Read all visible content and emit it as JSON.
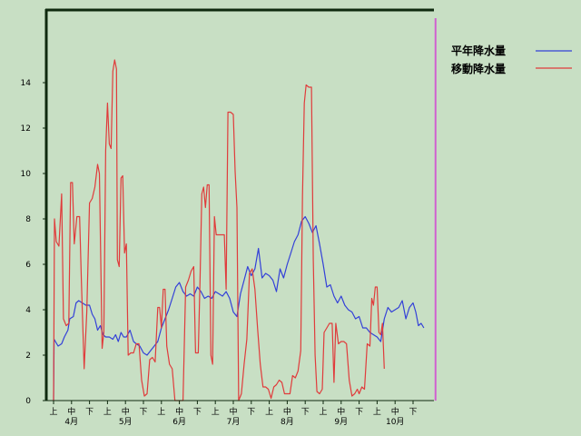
{
  "chart_data": {
    "type": "line",
    "ylim": [
      0,
      16
    ],
    "yticks": [
      0,
      2,
      4,
      6,
      8,
      10,
      12,
      14
    ],
    "xlim": [
      0,
      21.4
    ],
    "period_ticks": [
      "上",
      "中",
      "下",
      "上",
      "中",
      "下",
      "上",
      "中",
      "下",
      "上",
      "中",
      "下",
      "上",
      "中",
      "下",
      "上",
      "中",
      "下",
      "上",
      "中",
      "下"
    ],
    "month_labels": [
      {
        "label": "4月",
        "x": 1
      },
      {
        "label": "5月",
        "x": 4
      },
      {
        "label": "6月",
        "x": 7
      },
      {
        "label": "7月",
        "x": 10
      },
      {
        "label": "8月",
        "x": 13
      },
      {
        "label": "9月",
        "x": 16
      },
      {
        "label": "10月",
        "x": 19
      }
    ],
    "marker_line_x": 21.25,
    "grid": false,
    "legend_position": "top-right",
    "series": [
      {
        "name": "平年降水量",
        "color": "#3340d8",
        "points": [
          [
            0.0,
            0.0
          ],
          [
            0.03,
            2.7
          ],
          [
            0.25,
            2.4
          ],
          [
            0.45,
            2.5
          ],
          [
            0.6,
            2.8
          ],
          [
            0.8,
            3.1
          ],
          [
            0.9,
            3.6
          ],
          [
            1.1,
            3.7
          ],
          [
            1.25,
            4.3
          ],
          [
            1.4,
            4.4
          ],
          [
            1.6,
            4.3
          ],
          [
            1.8,
            4.2
          ],
          [
            2.0,
            4.2
          ],
          [
            2.15,
            3.8
          ],
          [
            2.3,
            3.6
          ],
          [
            2.45,
            3.1
          ],
          [
            2.6,
            3.3
          ],
          [
            2.75,
            2.9
          ],
          [
            2.9,
            2.8
          ],
          [
            3.1,
            2.8
          ],
          [
            3.3,
            2.7
          ],
          [
            3.45,
            2.9
          ],
          [
            3.6,
            2.6
          ],
          [
            3.75,
            3.0
          ],
          [
            3.9,
            2.8
          ],
          [
            4.05,
            2.8
          ],
          [
            4.25,
            3.1
          ],
          [
            4.45,
            2.6
          ],
          [
            4.6,
            2.5
          ],
          [
            4.8,
            2.4
          ],
          [
            5.0,
            2.1
          ],
          [
            5.2,
            2.0
          ],
          [
            5.4,
            2.2
          ],
          [
            5.6,
            2.4
          ],
          [
            5.8,
            2.6
          ],
          [
            6.0,
            3.2
          ],
          [
            6.2,
            3.6
          ],
          [
            6.4,
            4.0
          ],
          [
            6.6,
            4.5
          ],
          [
            6.8,
            5.0
          ],
          [
            7.0,
            5.2
          ],
          [
            7.2,
            4.8
          ],
          [
            7.4,
            4.6
          ],
          [
            7.6,
            4.7
          ],
          [
            7.8,
            4.6
          ],
          [
            8.0,
            5.0
          ],
          [
            8.2,
            4.8
          ],
          [
            8.4,
            4.5
          ],
          [
            8.6,
            4.6
          ],
          [
            8.8,
            4.5
          ],
          [
            9.0,
            4.8
          ],
          [
            9.2,
            4.7
          ],
          [
            9.4,
            4.6
          ],
          [
            9.6,
            4.8
          ],
          [
            9.8,
            4.5
          ],
          [
            10.0,
            3.9
          ],
          [
            10.2,
            3.7
          ],
          [
            10.4,
            4.7
          ],
          [
            10.6,
            5.3
          ],
          [
            10.8,
            5.9
          ],
          [
            11.0,
            5.5
          ],
          [
            11.2,
            5.8
          ],
          [
            11.4,
            6.7
          ],
          [
            11.6,
            5.4
          ],
          [
            11.8,
            5.6
          ],
          [
            12.0,
            5.5
          ],
          [
            12.2,
            5.3
          ],
          [
            12.4,
            4.8
          ],
          [
            12.6,
            5.8
          ],
          [
            12.8,
            5.4
          ],
          [
            13.0,
            6.0
          ],
          [
            13.2,
            6.5
          ],
          [
            13.4,
            7.0
          ],
          [
            13.6,
            7.3
          ],
          [
            13.8,
            7.9
          ],
          [
            14.0,
            8.1
          ],
          [
            14.2,
            7.8
          ],
          [
            14.4,
            7.4
          ],
          [
            14.6,
            7.7
          ],
          [
            14.8,
            6.9
          ],
          [
            15.0,
            6.0
          ],
          [
            15.2,
            5.0
          ],
          [
            15.4,
            5.1
          ],
          [
            15.6,
            4.6
          ],
          [
            15.8,
            4.3
          ],
          [
            16.0,
            4.6
          ],
          [
            16.2,
            4.2
          ],
          [
            16.4,
            4.0
          ],
          [
            16.6,
            3.9
          ],
          [
            16.8,
            3.6
          ],
          [
            17.0,
            3.7
          ],
          [
            17.2,
            3.2
          ],
          [
            17.4,
            3.2
          ],
          [
            17.6,
            3.0
          ],
          [
            17.8,
            2.9
          ],
          [
            18.0,
            2.8
          ],
          [
            18.2,
            2.6
          ],
          [
            18.4,
            3.6
          ],
          [
            18.6,
            4.1
          ],
          [
            18.8,
            3.9
          ],
          [
            19.0,
            4.0
          ],
          [
            19.2,
            4.1
          ],
          [
            19.4,
            4.4
          ],
          [
            19.6,
            3.6
          ],
          [
            19.8,
            4.1
          ],
          [
            20.0,
            4.3
          ],
          [
            20.15,
            3.9
          ],
          [
            20.3,
            3.3
          ],
          [
            20.45,
            3.4
          ],
          [
            20.6,
            3.2
          ]
        ]
      },
      {
        "name": "移動降水量",
        "color": "#e03b3b",
        "points": [
          [
            0.0,
            0.0
          ],
          [
            0.05,
            8.0
          ],
          [
            0.15,
            7.0
          ],
          [
            0.3,
            6.8
          ],
          [
            0.45,
            9.1
          ],
          [
            0.55,
            3.6
          ],
          [
            0.7,
            3.3
          ],
          [
            0.85,
            3.4
          ],
          [
            0.95,
            9.6
          ],
          [
            1.05,
            9.6
          ],
          [
            1.15,
            6.9
          ],
          [
            1.3,
            8.1
          ],
          [
            1.45,
            8.1
          ],
          [
            1.55,
            5.2
          ],
          [
            1.7,
            1.4
          ],
          [
            1.85,
            3.9
          ],
          [
            2.0,
            8.7
          ],
          [
            2.15,
            8.9
          ],
          [
            2.3,
            9.4
          ],
          [
            2.45,
            10.4
          ],
          [
            2.55,
            10.0
          ],
          [
            2.7,
            2.3
          ],
          [
            2.8,
            3.0
          ],
          [
            2.9,
            11.0
          ],
          [
            3.0,
            13.1
          ],
          [
            3.1,
            11.3
          ],
          [
            3.2,
            11.1
          ],
          [
            3.3,
            14.5
          ],
          [
            3.4,
            15.0
          ],
          [
            3.5,
            14.6
          ],
          [
            3.55,
            6.2
          ],
          [
            3.65,
            5.9
          ],
          [
            3.75,
            9.8
          ],
          [
            3.85,
            9.9
          ],
          [
            3.95,
            6.5
          ],
          [
            4.05,
            6.9
          ],
          [
            4.15,
            2.0
          ],
          [
            4.3,
            2.1
          ],
          [
            4.45,
            2.1
          ],
          [
            4.6,
            2.5
          ],
          [
            4.75,
            2.5
          ],
          [
            4.9,
            0.9
          ],
          [
            5.05,
            0.2
          ],
          [
            5.2,
            0.3
          ],
          [
            5.35,
            1.8
          ],
          [
            5.5,
            1.9
          ],
          [
            5.65,
            1.7
          ],
          [
            5.8,
            4.1
          ],
          [
            5.9,
            4.1
          ],
          [
            6.0,
            3.2
          ],
          [
            6.1,
            4.9
          ],
          [
            6.2,
            4.9
          ],
          [
            6.3,
            2.4
          ],
          [
            6.45,
            1.6
          ],
          [
            6.6,
            1.4
          ],
          [
            6.75,
            0.0
          ],
          [
            6.9,
            0.0
          ],
          [
            7.05,
            0.0
          ],
          [
            7.2,
            0.0
          ],
          [
            7.35,
            5.0
          ],
          [
            7.5,
            5.3
          ],
          [
            7.65,
            5.7
          ],
          [
            7.8,
            5.9
          ],
          [
            7.9,
            2.1
          ],
          [
            8.05,
            2.1
          ],
          [
            8.15,
            5.4
          ],
          [
            8.25,
            9.1
          ],
          [
            8.35,
            9.4
          ],
          [
            8.45,
            8.5
          ],
          [
            8.55,
            9.5
          ],
          [
            8.65,
            9.5
          ],
          [
            8.75,
            2.0
          ],
          [
            8.85,
            1.6
          ],
          [
            8.95,
            8.1
          ],
          [
            9.05,
            7.3
          ],
          [
            9.2,
            7.3
          ],
          [
            9.35,
            7.3
          ],
          [
            9.5,
            7.3
          ],
          [
            9.6,
            4.9
          ],
          [
            9.7,
            12.7
          ],
          [
            9.85,
            12.7
          ],
          [
            10.0,
            12.6
          ],
          [
            10.1,
            10.1
          ],
          [
            10.2,
            8.5
          ],
          [
            10.3,
            0.0
          ],
          [
            10.45,
            0.3
          ],
          [
            10.6,
            1.6
          ],
          [
            10.75,
            2.7
          ],
          [
            10.9,
            5.6
          ],
          [
            11.05,
            5.8
          ],
          [
            11.2,
            4.9
          ],
          [
            11.35,
            3.2
          ],
          [
            11.5,
            1.6
          ],
          [
            11.65,
            0.6
          ],
          [
            11.8,
            0.6
          ],
          [
            11.95,
            0.5
          ],
          [
            12.1,
            0.1
          ],
          [
            12.25,
            0.6
          ],
          [
            12.4,
            0.7
          ],
          [
            12.55,
            0.9
          ],
          [
            12.7,
            0.8
          ],
          [
            12.85,
            0.3
          ],
          [
            13.0,
            0.3
          ],
          [
            13.15,
            0.3
          ],
          [
            13.3,
            1.1
          ],
          [
            13.45,
            1.0
          ],
          [
            13.6,
            1.3
          ],
          [
            13.75,
            2.2
          ],
          [
            13.85,
            9.0
          ],
          [
            13.95,
            13.1
          ],
          [
            14.05,
            13.9
          ],
          [
            14.2,
            13.8
          ],
          [
            14.35,
            13.8
          ],
          [
            14.45,
            6.2
          ],
          [
            14.55,
            2.0
          ],
          [
            14.65,
            0.4
          ],
          [
            14.8,
            0.3
          ],
          [
            14.95,
            0.5
          ],
          [
            15.05,
            3.0
          ],
          [
            15.2,
            3.2
          ],
          [
            15.35,
            3.4
          ],
          [
            15.5,
            3.4
          ],
          [
            15.6,
            0.8
          ],
          [
            15.7,
            3.4
          ],
          [
            15.85,
            2.5
          ],
          [
            16.0,
            2.6
          ],
          [
            16.15,
            2.6
          ],
          [
            16.3,
            2.5
          ],
          [
            16.45,
            0.9
          ],
          [
            16.6,
            0.2
          ],
          [
            16.75,
            0.3
          ],
          [
            16.9,
            0.5
          ],
          [
            17.0,
            0.3
          ],
          [
            17.15,
            0.6
          ],
          [
            17.3,
            0.5
          ],
          [
            17.45,
            2.5
          ],
          [
            17.6,
            2.4
          ],
          [
            17.7,
            4.5
          ],
          [
            17.8,
            4.2
          ],
          [
            17.9,
            5.0
          ],
          [
            18.0,
            5.0
          ],
          [
            18.1,
            3.0
          ],
          [
            18.2,
            2.9
          ],
          [
            18.3,
            3.4
          ],
          [
            18.4,
            1.4
          ]
        ]
      }
    ]
  }
}
